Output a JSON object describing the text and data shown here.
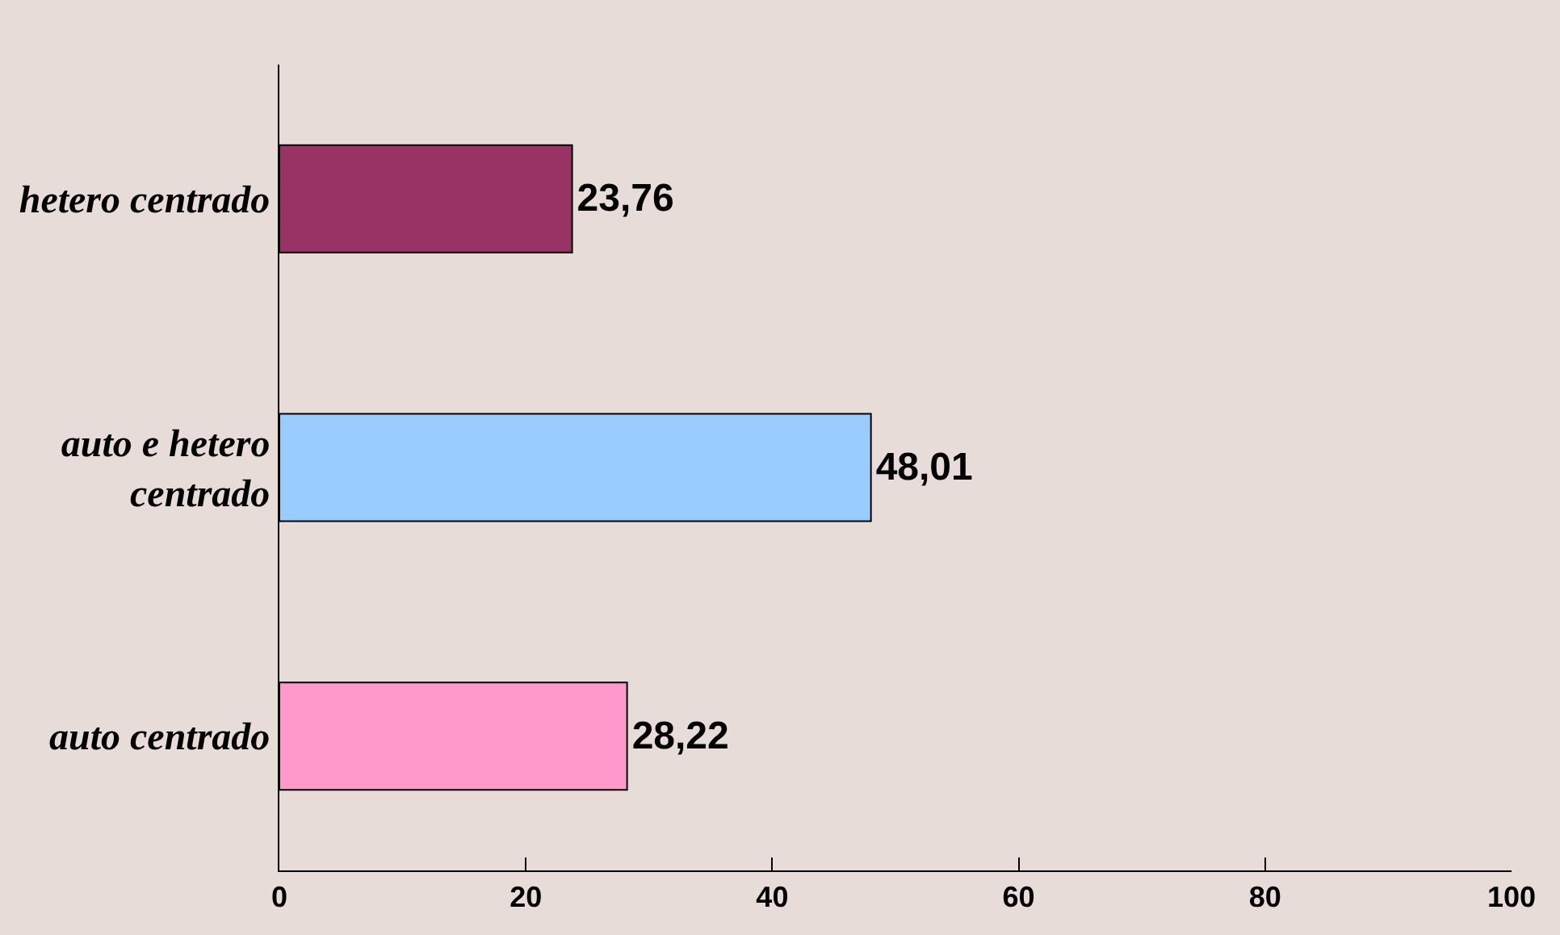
{
  "chart_data": {
    "type": "bar",
    "orientation": "horizontal",
    "categories": [
      "hetero centrado",
      "auto e hetero centrado",
      "auto centrado"
    ],
    "values": [
      23.76,
      48.01,
      28.22
    ],
    "colors": [
      "#993366",
      "#99ccff",
      "#ff99cc"
    ],
    "value_labels": [
      "23,76",
      "48,01",
      "28,22"
    ],
    "xlim": [
      0,
      100
    ],
    "xticks": [
      0,
      20,
      40,
      60,
      80,
      100
    ],
    "grid": false,
    "legend": false
  }
}
